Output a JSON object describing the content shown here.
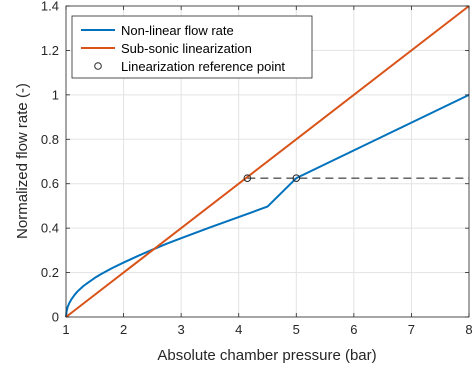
{
  "chart_data": {
    "type": "line",
    "title": "",
    "xlabel": "Absolute chamber pressure (bar)",
    "ylabel": "Normalized flow rate (-)",
    "xlim": [
      1,
      8
    ],
    "ylim": [
      0,
      1.4
    ],
    "x_ticks": [
      "1",
      "2",
      "3",
      "4",
      "5",
      "6",
      "7",
      "8"
    ],
    "y_ticks": [
      "0",
      "0.2",
      "0.4",
      "0.6",
      "0.8",
      "1",
      "1.2",
      "1.4"
    ],
    "grid": true,
    "legend_position": "top-left",
    "series": [
      {
        "name": "Non-linear flow rate",
        "color": "#0072BD",
        "x": [
          1.0,
          1.01,
          1.03,
          1.06,
          1.1,
          1.15,
          1.2,
          1.3,
          1.4,
          1.5,
          1.6,
          1.8,
          2.0,
          2.25,
          2.5,
          2.75,
          3.0,
          3.5,
          4.0,
          4.5,
          5.0,
          5.5,
          6.0,
          6.5,
          7.0,
          7.5,
          8.0
        ],
        "y": [
          0.0,
          0.026,
          0.046,
          0.064,
          0.082,
          0.1,
          0.115,
          0.139,
          0.158,
          0.176,
          0.192,
          0.22,
          0.245,
          0.275,
          0.303,
          0.33,
          0.355,
          0.403,
          0.45,
          0.497,
          0.625,
          0.6875,
          0.75,
          0.8125,
          0.875,
          0.9375,
          1.0
        ]
      },
      {
        "name": "Sub-sonic linearization",
        "color": "#D95319",
        "x": [
          1.0,
          8.0
        ],
        "y": [
          0.0,
          1.4
        ]
      }
    ],
    "reference_points": {
      "name": "Linearization reference point",
      "x": [
        4.15,
        5.0
      ],
      "y": [
        0.625,
        0.625
      ]
    },
    "reference_line": {
      "color": "#555555",
      "x": [
        4.15,
        8.0
      ],
      "y": [
        0.625,
        0.625
      ]
    }
  }
}
